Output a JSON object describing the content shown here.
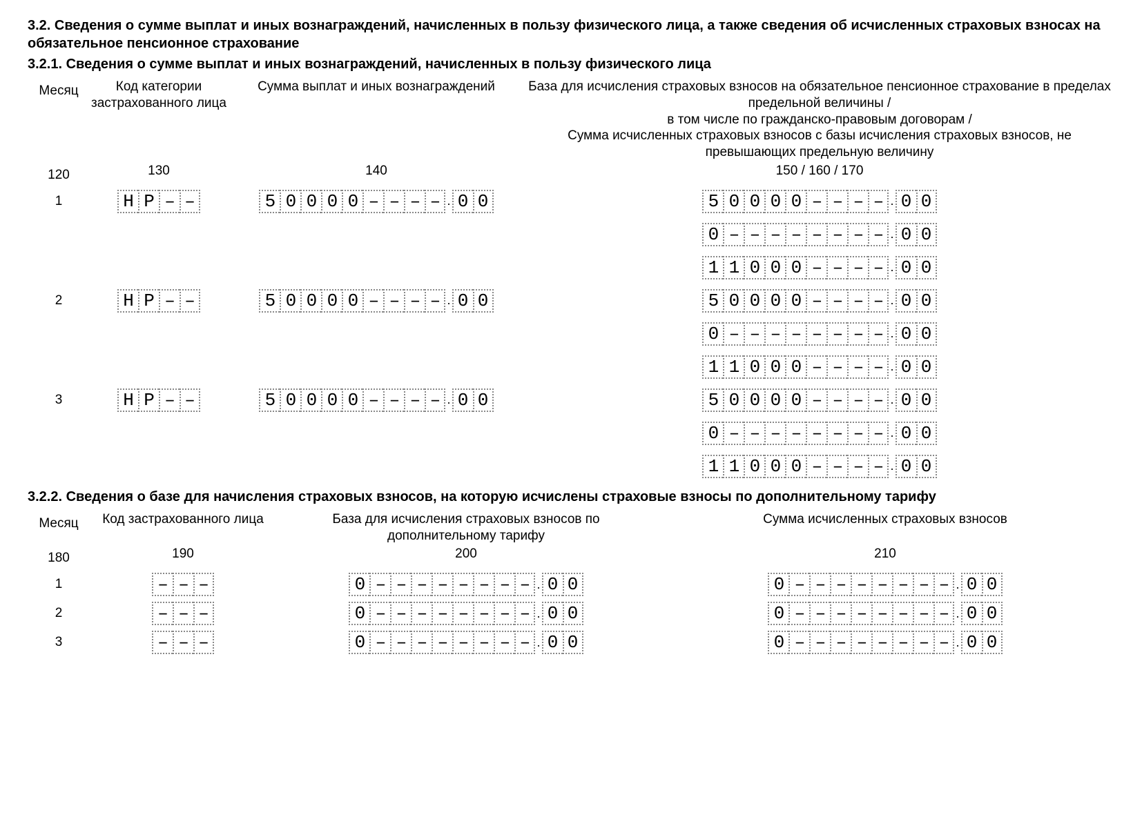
{
  "heading_32": "3.2. Сведения о сумме выплат и иных вознаграждений, начисленных в пользу физического лица, а также сведения об исчисленных страховых взносах на обязательное пенсионное страхование",
  "heading_321": "3.2.1. Сведения о сумме выплат и иных вознаграждений, начисленных в пользу физического лица",
  "heading_322": "3.2.2. Сведения о базе для начисления страховых взносов, на которую исчислены страховые взносы по дополнительному тарифу",
  "section_321": {
    "headers": {
      "month": "Месяц",
      "code": "Код категории застрахованного лица",
      "amount": "Сумма выплат и иных вознаграждений",
      "base": "База для исчисления страховых взносов на обязательное пенсионное страхование в пределах предельной величины /\nв том числе по гражданско-правовым договорам /\nСумма исчисленных страховых взносов с базы исчисления страховых взносов, не превышающих предельную величину"
    },
    "codes": {
      "month": "120",
      "code": "130",
      "amount": "140",
      "base": "150 / 160 / 170"
    },
    "rows": [
      {
        "month": "1",
        "code": [
          "Н",
          "Р",
          "–",
          "–"
        ],
        "amount_int": [
          "5",
          "0",
          "0",
          "0",
          "0",
          "–",
          "–",
          "–",
          "–"
        ],
        "amount_dec": [
          "0",
          "0"
        ],
        "base": [
          {
            "int": [
              "5",
              "0",
              "0",
              "0",
              "0",
              "–",
              "–",
              "–",
              "–"
            ],
            "dec": [
              "0",
              "0"
            ]
          },
          {
            "int": [
              "0",
              "–",
              "–",
              "–",
              "–",
              "–",
              "–",
              "–",
              "–"
            ],
            "dec": [
              "0",
              "0"
            ]
          },
          {
            "int": [
              "1",
              "1",
              "0",
              "0",
              "0",
              "–",
              "–",
              "–",
              "–"
            ],
            "dec": [
              "0",
              "0"
            ]
          }
        ]
      },
      {
        "month": "2",
        "code": [
          "Н",
          "Р",
          "–",
          "–"
        ],
        "amount_int": [
          "5",
          "0",
          "0",
          "0",
          "0",
          "–",
          "–",
          "–",
          "–"
        ],
        "amount_dec": [
          "0",
          "0"
        ],
        "base": [
          {
            "int": [
              "5",
              "0",
              "0",
              "0",
              "0",
              "–",
              "–",
              "–",
              "–"
            ],
            "dec": [
              "0",
              "0"
            ]
          },
          {
            "int": [
              "0",
              "–",
              "–",
              "–",
              "–",
              "–",
              "–",
              "–",
              "–"
            ],
            "dec": [
              "0",
              "0"
            ]
          },
          {
            "int": [
              "1",
              "1",
              "0",
              "0",
              "0",
              "–",
              "–",
              "–",
              "–"
            ],
            "dec": [
              "0",
              "0"
            ]
          }
        ]
      },
      {
        "month": "3",
        "code": [
          "Н",
          "Р",
          "–",
          "–"
        ],
        "amount_int": [
          "5",
          "0",
          "0",
          "0",
          "0",
          "–",
          "–",
          "–",
          "–"
        ],
        "amount_dec": [
          "0",
          "0"
        ],
        "base": [
          {
            "int": [
              "5",
              "0",
              "0",
              "0",
              "0",
              "–",
              "–",
              "–",
              "–"
            ],
            "dec": [
              "0",
              "0"
            ]
          },
          {
            "int": [
              "0",
              "–",
              "–",
              "–",
              "–",
              "–",
              "–",
              "–",
              "–"
            ],
            "dec": [
              "0",
              "0"
            ]
          },
          {
            "int": [
              "1",
              "1",
              "0",
              "0",
              "0",
              "–",
              "–",
              "–",
              "–"
            ],
            "dec": [
              "0",
              "0"
            ]
          }
        ]
      }
    ]
  },
  "section_322": {
    "headers": {
      "month": "Месяц",
      "code": "Код застрахованного лица",
      "base": "База для исчисления страховых взносов по дополнительному тарифу",
      "sum": "Сумма исчисленных страховых взносов"
    },
    "codes": {
      "month": "180",
      "code": "190",
      "base": "200",
      "sum": "210"
    },
    "rows": [
      {
        "month": "1",
        "code": [
          "–",
          "–",
          "–"
        ],
        "base_int": [
          "0",
          "–",
          "–",
          "–",
          "–",
          "–",
          "–",
          "–",
          "–"
        ],
        "base_dec": [
          "0",
          "0"
        ],
        "sum_int": [
          "0",
          "–",
          "–",
          "–",
          "–",
          "–",
          "–",
          "–",
          "–"
        ],
        "sum_dec": [
          "0",
          "0"
        ]
      },
      {
        "month": "2",
        "code": [
          "–",
          "–",
          "–"
        ],
        "base_int": [
          "0",
          "–",
          "–",
          "–",
          "–",
          "–",
          "–",
          "–",
          "–"
        ],
        "base_dec": [
          "0",
          "0"
        ],
        "sum_int": [
          "0",
          "–",
          "–",
          "–",
          "–",
          "–",
          "–",
          "–",
          "–"
        ],
        "sum_dec": [
          "0",
          "0"
        ]
      },
      {
        "month": "3",
        "code": [
          "–",
          "–",
          "–"
        ],
        "base_int": [
          "0",
          "–",
          "–",
          "–",
          "–",
          "–",
          "–",
          "–",
          "–"
        ],
        "base_dec": [
          "0",
          "0"
        ],
        "sum_int": [
          "0",
          "–",
          "–",
          "–",
          "–",
          "–",
          "–",
          "–",
          "–"
        ],
        "sum_dec": [
          "0",
          "0"
        ]
      }
    ]
  }
}
